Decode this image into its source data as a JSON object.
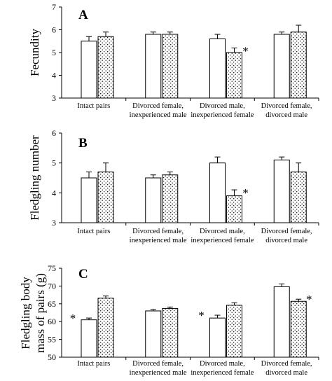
{
  "chart_data": [
    {
      "type": "bar",
      "panel": "A",
      "ylabel": "Fecundity",
      "ylim": [
        3,
        7
      ],
      "yticks": [
        3,
        4,
        5,
        6,
        7
      ],
      "categories": [
        [
          "Intact pairs"
        ],
        [
          "Divorced female,",
          "inexperienced male"
        ],
        [
          "Divorced male,",
          "inexperienced female"
        ],
        [
          "Divorced female,",
          "divorced male"
        ]
      ],
      "series": [
        {
          "fill": "plain",
          "values": [
            5.5,
            5.8,
            5.6,
            5.8
          ],
          "errors": [
            0.2,
            0.1,
            0.2,
            0.1
          ]
        },
        {
          "fill": "dotted",
          "values": [
            5.7,
            5.8,
            5.0,
            5.9
          ],
          "errors": [
            0.2,
            0.1,
            0.2,
            0.3
          ]
        }
      ],
      "annotations": [
        {
          "category": 2,
          "series": 1,
          "text": "*"
        }
      ]
    },
    {
      "type": "bar",
      "panel": "B",
      "ylabel": "Fledgling number",
      "ylim": [
        3,
        6
      ],
      "yticks": [
        3,
        4,
        5,
        6
      ],
      "categories": [
        [
          "Intact pairs"
        ],
        [
          "Divorced female,",
          "inexperienced male"
        ],
        [
          "Divorced male,",
          "inexperienced female"
        ],
        [
          "Divorced female,",
          "divorced male"
        ]
      ],
      "series": [
        {
          "fill": "plain",
          "values": [
            4.5,
            4.5,
            5.0,
            5.1
          ],
          "errors": [
            0.2,
            0.1,
            0.2,
            0.1
          ]
        },
        {
          "fill": "dotted",
          "values": [
            4.7,
            4.6,
            3.9,
            4.7
          ],
          "errors": [
            0.3,
            0.1,
            0.2,
            0.3
          ]
        }
      ],
      "annotations": [
        {
          "category": 2,
          "series": 1,
          "text": "*"
        }
      ]
    },
    {
      "type": "bar",
      "panel": "C",
      "ylabel": [
        "Fledgling body",
        "mass of pairs (g)"
      ],
      "ylim": [
        50,
        75
      ],
      "yticks": [
        50,
        55,
        60,
        65,
        70,
        75
      ],
      "categories": [
        [
          "Intact pairs"
        ],
        [
          "Divorced female,",
          "inexperienced male"
        ],
        [
          "Divorced male,",
          "inexperienced female"
        ],
        [
          "Divorced female,",
          "divorced male"
        ]
      ],
      "series": [
        {
          "fill": "plain",
          "values": [
            60.5,
            63.0,
            61.0,
            69.8
          ],
          "errors": [
            0.5,
            0.4,
            0.8,
            0.8
          ]
        },
        {
          "fill": "dotted",
          "values": [
            66.6,
            63.7,
            64.6,
            65.7
          ],
          "errors": [
            0.6,
            0.4,
            0.7,
            0.6
          ]
        }
      ],
      "annotations": [
        {
          "category": 0,
          "series": 0,
          "text": "*"
        },
        {
          "category": 2,
          "series": 0,
          "text": "*"
        },
        {
          "category": 3,
          "series": 1,
          "text": "*"
        }
      ]
    }
  ]
}
